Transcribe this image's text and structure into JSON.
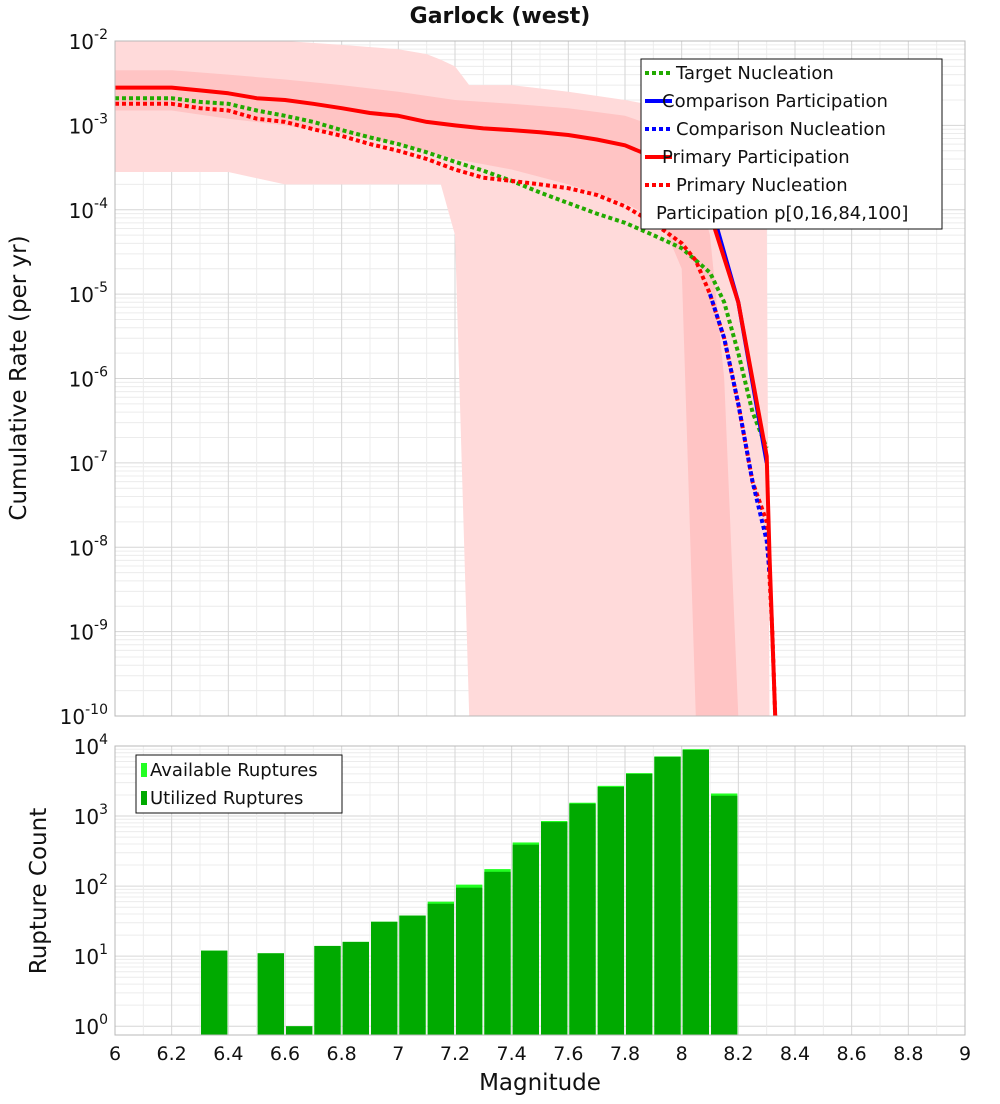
{
  "title": "Garlock (west)",
  "chart_data": [
    {
      "type": "line",
      "xlabel": "",
      "ylabel": "Cumulative Rate (per yr)",
      "xlim": [
        6,
        9
      ],
      "ylim": [
        1e-10,
        0.01
      ],
      "yscale": "log",
      "y_ticks": [
        {
          "base": "10",
          "exp": "-2"
        },
        {
          "base": "10",
          "exp": "-3"
        },
        {
          "base": "10",
          "exp": "-4"
        },
        {
          "base": "10",
          "exp": "-5"
        },
        {
          "base": "10",
          "exp": "-6"
        },
        {
          "base": "10",
          "exp": "-7"
        },
        {
          "base": "10",
          "exp": "-8"
        },
        {
          "base": "10",
          "exp": "-9"
        },
        {
          "base": "10",
          "exp": "-10"
        }
      ],
      "grid": true,
      "legend_position": "top-right",
      "legend": [
        {
          "label": "Target Nucleation",
          "color": "#22aa00",
          "style": "dotted"
        },
        {
          "label": "Comparison Participation",
          "color": "#0000ff",
          "style": "solid"
        },
        {
          "label": "Comparison Nucleation",
          "color": "#0000ff",
          "style": "dotted"
        },
        {
          "label": "Primary Participation",
          "color": "#ff0000",
          "style": "solid"
        },
        {
          "label": "Primary Nucleation",
          "color": "#ff0000",
          "style": "dotted"
        },
        {
          "label": "Participation p[0,16,84,100]",
          "color": "#ffc0c0",
          "style": "band"
        }
      ],
      "bands": [
        {
          "name": "Participation p[0,100]",
          "color": "#ffdada",
          "x": [
            6.0,
            6.2,
            6.4,
            6.6,
            6.8,
            7.0,
            7.1,
            7.15,
            7.2,
            7.25,
            7.4,
            7.6,
            7.8,
            8.0,
            8.1,
            8.2,
            8.3,
            8.31
          ],
          "lower": [
            0.00028,
            0.00028,
            0.00028,
            0.0002,
            0.0002,
            0.0002,
            0.0002,
            0.0002,
            5e-05,
            1e-10,
            1e-10,
            1e-10,
            1e-10,
            1e-10,
            1e-10,
            1e-10,
            1e-10,
            1e-10
          ],
          "upper": [
            0.01,
            0.01,
            0.01,
            0.01,
            0.009,
            0.008,
            0.007,
            0.006,
            0.005,
            0.003,
            0.003,
            0.0025,
            0.002,
            0.0015,
            0.001,
            0.0005,
            0.0001,
            1e-10
          ]
        },
        {
          "name": "Participation p[16,84]",
          "color": "#ffc4c4",
          "x": [
            6.0,
            6.2,
            6.4,
            6.6,
            6.8,
            7.0,
            7.2,
            7.4,
            7.6,
            7.8,
            7.9,
            7.95,
            8.0,
            8.05,
            8.1,
            8.15,
            8.2
          ],
          "lower": [
            0.0015,
            0.0015,
            0.0012,
            0.001,
            0.0008,
            0.0006,
            0.0004,
            0.0003,
            0.0002,
            0.00012,
            8e-05,
            5e-05,
            2e-05,
            1e-10,
            1e-10,
            1e-10,
            1e-10
          ],
          "upper": [
            0.0045,
            0.0045,
            0.004,
            0.0035,
            0.003,
            0.0025,
            0.002,
            0.0018,
            0.0016,
            0.0013,
            0.001,
            0.0007,
            0.0005,
            0.0002,
            5e-05,
            1e-06,
            1e-10
          ]
        }
      ],
      "series": [
        {
          "name": "Target Nucleation",
          "color": "#22aa00",
          "style": "dotted",
          "x": [
            6.0,
            6.2,
            6.3,
            6.4,
            6.5,
            6.6,
            6.7,
            6.8,
            6.9,
            7.0,
            7.1,
            7.2,
            7.3,
            7.4,
            7.5,
            7.6,
            7.7,
            7.8,
            7.9,
            8.0,
            8.1,
            8.15,
            8.2,
            8.25,
            8.3
          ],
          "y": [
            0.0021,
            0.0021,
            0.0019,
            0.0018,
            0.0015,
            0.0013,
            0.0011,
            0.00088,
            0.00072,
            0.0006,
            0.00048,
            0.00037,
            0.00029,
            0.00022,
            0.00016,
            0.00012,
            9e-05,
            7e-05,
            5e-05,
            3.5e-05,
            1.8e-05,
            8e-06,
            2e-06,
            4e-07,
            1.5e-07
          ]
        },
        {
          "name": "Primary Nucleation",
          "color": "#ff0000",
          "style": "dotted",
          "x": [
            6.0,
            6.2,
            6.3,
            6.4,
            6.5,
            6.6,
            6.7,
            6.8,
            6.9,
            7.0,
            7.1,
            7.2,
            7.3,
            7.4,
            7.5,
            7.6,
            7.7,
            7.8,
            7.9,
            8.0,
            8.05,
            8.1,
            8.15,
            8.2,
            8.25,
            8.3,
            8.32,
            8.33
          ],
          "y": [
            0.0018,
            0.0018,
            0.0016,
            0.0015,
            0.0012,
            0.0011,
            0.0009,
            0.00075,
            0.0006,
            0.0005,
            0.0004,
            0.0003,
            0.00024,
            0.00022,
            0.0002,
            0.00018,
            0.00015,
            0.00011,
            7e-05,
            4e-05,
            2.5e-05,
            1e-05,
            3e-06,
            5e-07,
            6e-08,
            2e-08,
            1e-09,
            1e-10
          ]
        },
        {
          "name": "Comparison Nucleation",
          "color": "#0000ff",
          "style": "dotted",
          "x": [
            8.1,
            8.15,
            8.2,
            8.25,
            8.3,
            8.31
          ],
          "y": [
            1e-05,
            3e-06,
            5e-07,
            6e-08,
            1.2e-08,
            5e-09
          ]
        },
        {
          "name": "Comparison Participation",
          "color": "#0000ff",
          "style": "solid",
          "x": [
            7.9,
            8.0,
            8.1,
            8.2,
            8.3
          ],
          "y": [
            0.00063,
            0.00045,
            0.00012,
            8e-06,
            1e-07
          ]
        },
        {
          "name": "Primary Participation",
          "color": "#ff0000",
          "style": "solid",
          "x": [
            6.0,
            6.2,
            6.3,
            6.4,
            6.5,
            6.6,
            6.7,
            6.8,
            6.9,
            7.0,
            7.1,
            7.2,
            7.3,
            7.4,
            7.5,
            7.6,
            7.7,
            7.8,
            7.9,
            8.0,
            8.1,
            8.2,
            8.3,
            8.31,
            8.33
          ],
          "y": [
            0.0028,
            0.0028,
            0.0026,
            0.0024,
            0.0021,
            0.002,
            0.0018,
            0.0016,
            0.0014,
            0.0013,
            0.0011,
            0.001,
            0.00092,
            0.00088,
            0.00083,
            0.00077,
            0.00068,
            0.00058,
            0.00042,
            0.00027,
            9e-05,
            8e-06,
            1.2e-07,
            8e-09,
            1e-10
          ]
        }
      ]
    },
    {
      "type": "bar",
      "xlabel": "Magnitude",
      "ylabel": "Rupture Count",
      "xlim": [
        6,
        9
      ],
      "ylim": [
        0.75,
        10000
      ],
      "yscale": "log",
      "x_ticks": [
        "6",
        "6.2",
        "6.4",
        "6.6",
        "6.8",
        "7",
        "7.2",
        "7.4",
        "7.6",
        "7.8",
        "8",
        "8.2",
        "8.4",
        "8.6",
        "8.8",
        "9"
      ],
      "y_ticks": [
        {
          "base": "10",
          "exp": "4"
        },
        {
          "base": "10",
          "exp": "3"
        },
        {
          "base": "10",
          "exp": "2"
        },
        {
          "base": "10",
          "exp": "1"
        },
        {
          "base": "10",
          "exp": "0"
        }
      ],
      "grid": true,
      "legend_position": "top-left",
      "legend": [
        {
          "label": "Available Ruptures",
          "color": "#22ff22"
        },
        {
          "label": "Utilized Ruptures",
          "color": "#00aa00"
        }
      ],
      "bin_width": 0.1,
      "bin_centers": [
        6.35,
        6.55,
        6.65,
        6.75,
        6.85,
        6.95,
        7.05,
        7.15,
        7.25,
        7.35,
        7.45,
        7.55,
        7.65,
        7.75,
        7.85,
        7.95,
        8.05,
        8.15
      ],
      "available_counts": [
        12,
        11,
        1,
        14,
        16,
        31,
        38,
        60,
        105,
        175,
        420,
        850,
        1550,
        2700,
        4100,
        7100,
        9000,
        2100
      ],
      "utilized_counts": [
        12,
        11,
        1,
        14,
        16,
        31,
        38,
        56,
        95,
        160,
        390,
        820,
        1500,
        2600,
        4000,
        7000,
        8800,
        1950
      ]
    }
  ]
}
